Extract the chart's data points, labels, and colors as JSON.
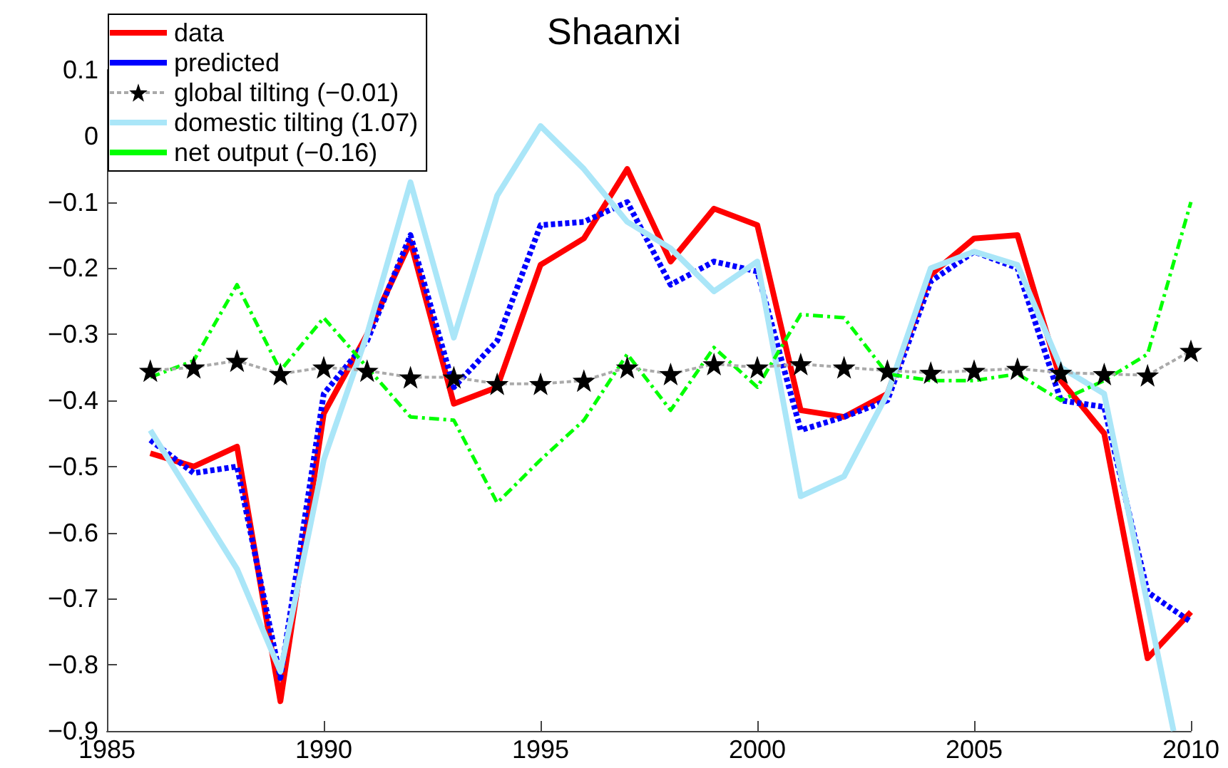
{
  "chart_data": {
    "type": "line",
    "title": "Shaanxi",
    "x": [
      1986,
      1987,
      1988,
      1989,
      1990,
      1991,
      1992,
      1993,
      1994,
      1995,
      1996,
      1997,
      1998,
      1999,
      2000,
      2001,
      2002,
      2003,
      2004,
      2005,
      2006,
      2007,
      2008,
      2009,
      2010
    ],
    "series": [
      {
        "name": "data",
        "color": "#ff0000",
        "line_style": "solid",
        "marker": "none",
        "values": [
          -0.48,
          -0.5,
          -0.47,
          -0.855,
          -0.42,
          -0.3,
          -0.16,
          -0.405,
          -0.38,
          -0.195,
          -0.155,
          -0.05,
          -0.19,
          -0.11,
          -0.135,
          -0.415,
          -0.425,
          -0.39,
          -0.21,
          -0.155,
          -0.15,
          -0.37,
          -0.45,
          -0.79,
          -0.72
        ]
      },
      {
        "name": "predicted",
        "color": "#0000ff",
        "line_style": "dotted",
        "marker": "none",
        "values": [
          -0.46,
          -0.51,
          -0.5,
          -0.82,
          -0.39,
          -0.31,
          -0.15,
          -0.38,
          -0.31,
          -0.135,
          -0.13,
          -0.1,
          -0.225,
          -0.19,
          -0.205,
          -0.445,
          -0.425,
          -0.4,
          -0.22,
          -0.175,
          -0.2,
          -0.4,
          -0.41,
          -0.69,
          -0.735
        ]
      },
      {
        "name": "global tilting (−0.01)",
        "color": "#000000",
        "line_style": "dotted",
        "marker": "star",
        "values": [
          -0.355,
          -0.35,
          -0.34,
          -0.36,
          -0.35,
          -0.355,
          -0.365,
          -0.365,
          -0.375,
          -0.375,
          -0.37,
          -0.35,
          -0.36,
          -0.345,
          -0.35,
          -0.345,
          -0.35,
          -0.355,
          -0.358,
          -0.355,
          -0.352,
          -0.358,
          -0.36,
          -0.362,
          -0.325
        ]
      },
      {
        "name": "domestic tilting (1.07)",
        "color": "#aae6f8",
        "line_style": "solid",
        "marker": "none",
        "x": [
          1986,
          1987,
          1988,
          1989,
          1990,
          1991,
          1992,
          1993,
          1994,
          1995,
          1996,
          1997,
          1998,
          1999,
          2000,
          2001,
          2002,
          2003,
          2004,
          2005,
          2006,
          2007,
          2008,
          2009.6
        ],
        "values": [
          -0.445,
          -0.55,
          -0.655,
          -0.81,
          -0.49,
          -0.3,
          -0.07,
          -0.305,
          -0.09,
          0.015,
          -0.05,
          -0.13,
          -0.17,
          -0.235,
          -0.19,
          -0.545,
          -0.515,
          -0.39,
          -0.2,
          -0.175,
          -0.195,
          -0.35,
          -0.39,
          -0.9
        ]
      },
      {
        "name": "net output (−0.16)",
        "color": "#00ff00",
        "line_style": "dashed",
        "marker": "none",
        "values": [
          -0.365,
          -0.34,
          -0.225,
          -0.355,
          -0.275,
          -0.35,
          -0.425,
          -0.43,
          -0.555,
          -0.49,
          -0.43,
          -0.33,
          -0.415,
          -0.32,
          -0.38,
          -0.27,
          -0.275,
          -0.36,
          -0.37,
          -0.37,
          -0.36,
          -0.4,
          -0.37,
          -0.33,
          -0.1
        ]
      }
    ],
    "xlim": [
      1985,
      2010
    ],
    "xticks": [
      1985,
      1990,
      1995,
      2000,
      2005,
      2010
    ],
    "ylim": [
      -0.9,
      0.1
    ],
    "yticks": [
      -0.9,
      -0.8,
      -0.7,
      -0.6,
      -0.5,
      -0.4,
      -0.3,
      -0.2,
      -0.1,
      0,
      0.1
    ],
    "grid": false,
    "legend": "top left"
  }
}
